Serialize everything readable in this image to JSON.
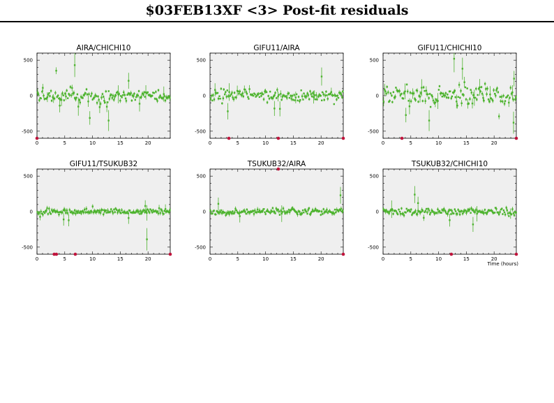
{
  "page_title": "$03FEB13XF <3> Post-fit residuals",
  "colors": {
    "points": "#4db32e",
    "outliers": "#c0143c",
    "panel_bg": "#efefef",
    "frame": "#000000"
  },
  "chart_data": [
    {
      "type": "scatter",
      "title": "AIRA/CHICHI10",
      "xlabel": "",
      "ylabel": "",
      "xlim": [
        0,
        24
      ],
      "ylim": [
        -600,
        600
      ],
      "xticks": [
        0,
        5,
        10,
        15,
        20
      ],
      "yticks": [
        500,
        0,
        -500
      ],
      "grid": false,
      "panel_background": "light gray",
      "residual_scatter": 45,
      "spike_rate": 0.12,
      "seed": 11,
      "spikes": [
        [
          6.8,
          430
        ],
        [
          12.9,
          -350
        ],
        [
          4.1,
          -140
        ],
        [
          16.5,
          210
        ]
      ],
      "outliers": [
        [
          0,
          -600
        ]
      ]
    },
    {
      "type": "scatter",
      "title": "GIFU11/AIRA",
      "xlabel": "",
      "ylabel": "",
      "xlim": [
        0,
        24
      ],
      "ylim": [
        -600,
        600
      ],
      "xticks": [
        0,
        5,
        10,
        15,
        20
      ],
      "yticks": [
        500,
        0,
        -500
      ],
      "grid": false,
      "panel_background": "light gray",
      "residual_scatter": 40,
      "spike_rate": 0.1,
      "seed": 23,
      "spikes": [
        [
          3.2,
          -220
        ],
        [
          11.6,
          -180
        ],
        [
          20.1,
          270
        ]
      ],
      "outliers": [
        [
          3.4,
          -600
        ],
        [
          12.3,
          -600
        ],
        [
          24,
          -600
        ]
      ]
    },
    {
      "type": "scatter",
      "title": "GIFU11/CHICHI10",
      "xlabel": "",
      "ylabel": "",
      "xlim": [
        0,
        24
      ],
      "ylim": [
        -600,
        600
      ],
      "xticks": [
        0,
        5,
        10,
        15,
        20
      ],
      "yticks": [
        500,
        0,
        -500
      ],
      "grid": false,
      "panel_background": "light gray",
      "residual_scatter": 65,
      "spike_rate": 0.16,
      "seed": 37,
      "spikes": [
        [
          12.8,
          520
        ],
        [
          14.3,
          380
        ],
        [
          8.3,
          -350
        ],
        [
          23.5,
          -380
        ]
      ],
      "outliers": [
        [
          3.4,
          -600
        ],
        [
          24,
          -600
        ]
      ]
    },
    {
      "type": "scatter",
      "title": "GIFU11/TSUKUB32",
      "xlabel": "",
      "ylabel": "",
      "xlim": [
        0,
        24
      ],
      "ylim": [
        -600,
        600
      ],
      "xticks": [
        0,
        5,
        10,
        15,
        20
      ],
      "yticks": [
        500,
        0,
        -500
      ],
      "grid": false,
      "panel_background": "light gray",
      "residual_scatter": 20,
      "spike_rate": 0.05,
      "seed": 49,
      "spikes": [
        [
          19.8,
          -390
        ],
        [
          4.8,
          -110
        ],
        [
          16.5,
          -90
        ],
        [
          19.5,
          80
        ]
      ],
      "outliers": [
        [
          3.1,
          -600
        ],
        [
          3.5,
          -600
        ],
        [
          6.9,
          -600
        ],
        [
          24,
          -600
        ]
      ]
    },
    {
      "type": "scatter",
      "title": "TSUKUB32/AIRA",
      "xlabel": "",
      "ylabel": "",
      "xlim": [
        0,
        24
      ],
      "ylim": [
        -600,
        600
      ],
      "xticks": [
        0,
        5,
        10,
        15,
        20
      ],
      "yticks": [
        500,
        0,
        -500
      ],
      "grid": false,
      "panel_background": "light gray",
      "residual_scatter": 22,
      "spike_rate": 0.05,
      "seed": 61,
      "spikes": [
        [
          23.5,
          230
        ],
        [
          1.5,
          110
        ]
      ],
      "outliers": [
        [
          12.3,
          600
        ],
        [
          24,
          -600
        ]
      ]
    },
    {
      "type": "scatter",
      "title": "TSUKUB32/CHICHI10",
      "xlabel": "Time (hours)",
      "ylabel": "",
      "xlim": [
        0,
        24
      ],
      "ylim": [
        -600,
        600
      ],
      "xticks": [
        0,
        5,
        10,
        15,
        20
      ],
      "yticks": [
        500,
        0,
        -500
      ],
      "grid": false,
      "panel_background": "light gray",
      "residual_scatter": 25,
      "spike_rate": 0.06,
      "seed": 73,
      "spikes": [
        [
          5.7,
          240
        ],
        [
          6.3,
          120
        ],
        [
          16.2,
          -180
        ],
        [
          12.0,
          -120
        ]
      ],
      "outliers": [
        [
          12.3,
          -600
        ],
        [
          24,
          -600
        ]
      ]
    }
  ]
}
